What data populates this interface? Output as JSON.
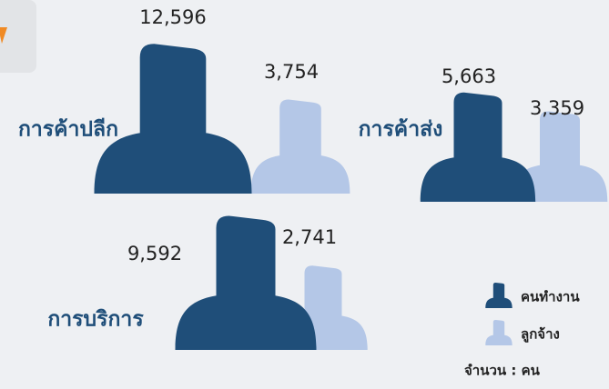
{
  "chart_data": {
    "type": "pictogram",
    "categories": [
      "การค้าปลีก",
      "การค้าส่ง",
      "การบริการ"
    ],
    "series": [
      {
        "name": "คนทำงาน",
        "color": "#1f4e79",
        "values": [
          12596,
          5663,
          9592
        ],
        "value_labels": [
          "12,596",
          "5,663",
          "9,592"
        ]
      },
      {
        "name": "ลูกจ้าง",
        "color": "#b4c7e7",
        "values": [
          3754,
          3359,
          2741
        ],
        "value_labels": [
          "3,754",
          "3,359",
          "2,741"
        ]
      }
    ],
    "unit_note": "จำนวน : คน"
  }
}
